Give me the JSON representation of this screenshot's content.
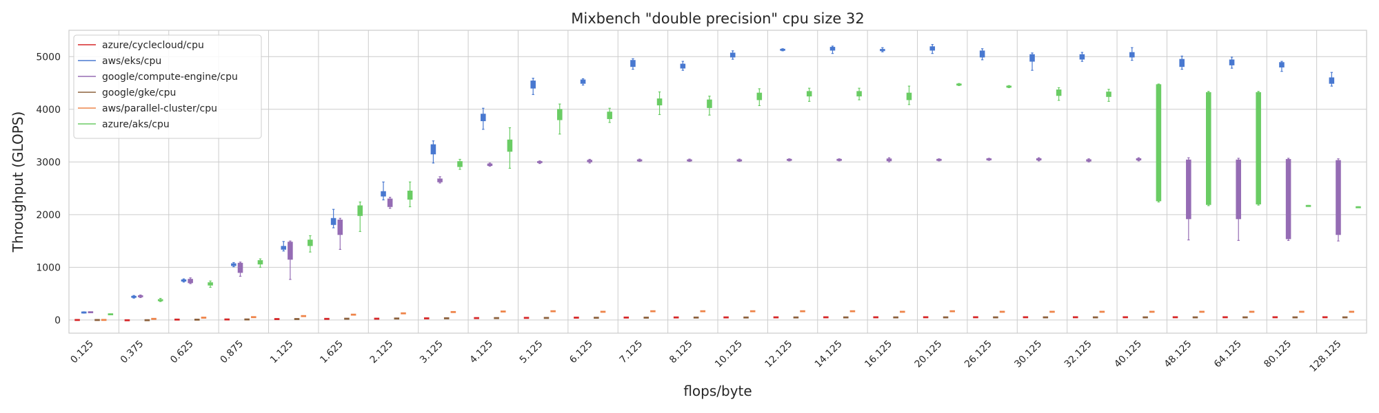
{
  "chart_data": {
    "type": "box",
    "title": "Mixbench \"double precision\" cpu size 32",
    "xlabel": "flops/byte",
    "ylabel": "Throughput (GLOPS)",
    "ylim": [
      -250,
      5500
    ],
    "yticks": [
      0,
      1000,
      2000,
      3000,
      4000,
      5000
    ],
    "grid": true,
    "legend_position": "top-left",
    "categories": [
      "0.125",
      "0.375",
      "0.625",
      "0.875",
      "1.125",
      "1.625",
      "2.125",
      "3.125",
      "4.125",
      "5.125",
      "6.125",
      "7.125",
      "8.125",
      "10.125",
      "12.125",
      "14.125",
      "16.125",
      "20.125",
      "26.125",
      "30.125",
      "32.125",
      "40.125",
      "48.125",
      "64.125",
      "80.125",
      "128.125"
    ],
    "series": [
      {
        "name": "azure/cyclecloud/cpu",
        "color": "#d62728",
        "boxes": [
          [
            -5,
            -2,
            0,
            2,
            5
          ],
          [
            -12,
            -8,
            -5,
            -2,
            0
          ],
          [
            3,
            5,
            8,
            10,
            12
          ],
          [
            5,
            8,
            10,
            12,
            15
          ],
          [
            10,
            15,
            18,
            20,
            24
          ],
          [
            15,
            18,
            21,
            24,
            28
          ],
          [
            20,
            22,
            25,
            27,
            30
          ],
          [
            25,
            28,
            31,
            34,
            37
          ],
          [
            30,
            33,
            36,
            39,
            42
          ],
          [
            34,
            37,
            40,
            43,
            46
          ],
          [
            38,
            41,
            44,
            47,
            50
          ],
          [
            40,
            43,
            46,
            49,
            52
          ],
          [
            42,
            45,
            48,
            51,
            54
          ],
          [
            43,
            46,
            49,
            52,
            55
          ],
          [
            44,
            47,
            50,
            53,
            56
          ],
          [
            45,
            48,
            51,
            54,
            57
          ],
          [
            45,
            48,
            51,
            54,
            57
          ],
          [
            46,
            49,
            52,
            55,
            58
          ],
          [
            46,
            49,
            52,
            55,
            58
          ],
          [
            46,
            49,
            52,
            55,
            58
          ],
          [
            46,
            49,
            52,
            55,
            58
          ],
          [
            46,
            49,
            52,
            55,
            58
          ],
          [
            46,
            49,
            52,
            55,
            58
          ],
          [
            46,
            49,
            52,
            55,
            58
          ],
          [
            46,
            49,
            52,
            55,
            58
          ],
          [
            46,
            49,
            52,
            55,
            58
          ]
        ]
      },
      {
        "name": "aws/eks/cpu",
        "color": "#4878d0",
        "boxes": [
          [
            130,
            136,
            142,
            148,
            155
          ],
          [
            415,
            428,
            440,
            452,
            465
          ],
          [
            720,
            735,
            750,
            765,
            780
          ],
          [
            1010,
            1030,
            1050,
            1070,
            1090
          ],
          [
            1310,
            1340,
            1370,
            1400,
            1490
          ],
          [
            1750,
            1810,
            1870,
            1930,
            2100
          ],
          [
            2280,
            2350,
            2400,
            2440,
            2620
          ],
          [
            2980,
            3150,
            3250,
            3330,
            3400
          ],
          [
            3620,
            3780,
            3850,
            3910,
            4020
          ],
          [
            4280,
            4400,
            4470,
            4540,
            4590
          ],
          [
            4460,
            4490,
            4520,
            4560,
            4580
          ],
          [
            4760,
            4810,
            4870,
            4930,
            4960
          ],
          [
            4740,
            4780,
            4820,
            4860,
            4910
          ],
          [
            4950,
            4990,
            5030,
            5070,
            5110
          ],
          [
            5110,
            5120,
            5130,
            5140,
            5150
          ],
          [
            5060,
            5120,
            5150,
            5180,
            5200
          ],
          [
            5090,
            5110,
            5120,
            5140,
            5170
          ],
          [
            5060,
            5120,
            5150,
            5190,
            5230
          ],
          [
            4940,
            4990,
            5050,
            5110,
            5150
          ],
          [
            4740,
            4910,
            4980,
            5040,
            5070
          ],
          [
            4910,
            4950,
            4990,
            5040,
            5080
          ],
          [
            4930,
            4990,
            5030,
            5080,
            5170
          ],
          [
            4760,
            4810,
            4880,
            4950,
            5010
          ],
          [
            4780,
            4840,
            4890,
            4940,
            4990
          ],
          [
            4720,
            4800,
            4850,
            4890,
            4910
          ],
          [
            4440,
            4490,
            4550,
            4600,
            4700
          ]
        ]
      },
      {
        "name": "google/compute-engine/cpu",
        "color": "#956cb4",
        "boxes": [
          [
            140,
            144,
            147,
            150,
            154
          ],
          [
            425,
            438,
            450,
            462,
            475
          ],
          [
            690,
            705,
            740,
            775,
            800
          ],
          [
            830,
            900,
            1030,
            1080,
            1100
          ],
          [
            770,
            1150,
            1350,
            1480,
            1500
          ],
          [
            1340,
            1620,
            1800,
            1900,
            1930
          ],
          [
            2120,
            2150,
            2200,
            2300,
            2330
          ],
          [
            2600,
            2620,
            2650,
            2680,
            2720
          ],
          [
            2920,
            2930,
            2950,
            2965,
            2980
          ],
          [
            2970,
            2985,
            3000,
            3010,
            3020
          ],
          [
            2980,
            3000,
            3020,
            3035,
            3050
          ],
          [
            3010,
            3020,
            3030,
            3040,
            3055
          ],
          [
            3010,
            3020,
            3030,
            3040,
            3055
          ],
          [
            3010,
            3020,
            3030,
            3040,
            3055
          ],
          [
            3020,
            3030,
            3040,
            3050,
            3060
          ],
          [
            3020,
            3030,
            3040,
            3050,
            3060
          ],
          [
            3000,
            3020,
            3040,
            3060,
            3080
          ],
          [
            3020,
            3030,
            3040,
            3050,
            3060
          ],
          [
            3030,
            3040,
            3050,
            3060,
            3070
          ],
          [
            3020,
            3035,
            3050,
            3065,
            3080
          ],
          [
            3000,
            3015,
            3030,
            3045,
            3060
          ],
          [
            3020,
            3035,
            3050,
            3065,
            3080
          ],
          [
            1520,
            1920,
            2700,
            3040,
            3080
          ],
          [
            1510,
            1920,
            2700,
            3040,
            3070
          ],
          [
            1510,
            1540,
            2500,
            3050,
            3070
          ],
          [
            1500,
            1620,
            2500,
            3030,
            3060
          ]
        ]
      },
      {
        "name": "google/gke/cpu",
        "color": "#8c613c",
        "boxes": [
          [
            -6,
            -3,
            -1,
            2,
            5
          ],
          [
            -10,
            -7,
            -4,
            -1,
            2
          ],
          [
            0,
            3,
            6,
            9,
            12
          ],
          [
            4,
            7,
            10,
            13,
            16
          ],
          [
            12,
            15,
            18,
            21,
            24
          ],
          [
            18,
            21,
            24,
            27,
            30
          ],
          [
            22,
            25,
            28,
            31,
            34
          ],
          [
            26,
            29,
            32,
            35,
            38
          ],
          [
            30,
            33,
            36,
            39,
            42
          ],
          [
            33,
            36,
            39,
            42,
            45
          ],
          [
            36,
            39,
            42,
            45,
            48
          ],
          [
            38,
            41,
            44,
            47,
            50
          ],
          [
            40,
            43,
            46,
            49,
            52
          ],
          [
            41,
            44,
            47,
            50,
            53
          ],
          [
            42,
            45,
            48,
            51,
            54
          ],
          [
            43,
            46,
            49,
            52,
            55
          ],
          [
            43,
            46,
            49,
            52,
            55
          ],
          [
            44,
            47,
            50,
            53,
            56
          ],
          [
            44,
            47,
            50,
            53,
            56
          ],
          [
            44,
            47,
            50,
            53,
            56
          ],
          [
            44,
            47,
            50,
            53,
            56
          ],
          [
            44,
            47,
            50,
            53,
            56
          ],
          [
            44,
            47,
            50,
            53,
            56
          ],
          [
            44,
            47,
            50,
            53,
            56
          ],
          [
            44,
            47,
            50,
            53,
            56
          ],
          [
            44,
            47,
            50,
            53,
            56
          ]
        ]
      },
      {
        "name": "aws/parallel-cluster/cpu",
        "color": "#ee854a",
        "boxes": [
          [
            -5,
            -2,
            1,
            4,
            7
          ],
          [
            15,
            18,
            21,
            24,
            27
          ],
          [
            38,
            41,
            44,
            47,
            50
          ],
          [
            48,
            51,
            54,
            57,
            60
          ],
          [
            68,
            71,
            74,
            77,
            80
          ],
          [
            95,
            98,
            101,
            104,
            107
          ],
          [
            120,
            123,
            126,
            129,
            132
          ],
          [
            145,
            148,
            151,
            154,
            157
          ],
          [
            155,
            158,
            161,
            164,
            167
          ],
          [
            160,
            163,
            166,
            169,
            172
          ],
          [
            150,
            153,
            156,
            159,
            162
          ],
          [
            160,
            163,
            166,
            169,
            172
          ],
          [
            160,
            163,
            166,
            169,
            172
          ],
          [
            160,
            163,
            166,
            169,
            172
          ],
          [
            160,
            163,
            166,
            169,
            172
          ],
          [
            160,
            163,
            166,
            169,
            172
          ],
          [
            150,
            153,
            156,
            159,
            162
          ],
          [
            160,
            163,
            166,
            169,
            172
          ],
          [
            150,
            153,
            156,
            159,
            162
          ],
          [
            150,
            153,
            156,
            159,
            162
          ],
          [
            150,
            153,
            156,
            159,
            162
          ],
          [
            150,
            153,
            156,
            159,
            162
          ],
          [
            150,
            153,
            156,
            159,
            162
          ],
          [
            150,
            153,
            156,
            159,
            162
          ],
          [
            150,
            153,
            156,
            159,
            162
          ],
          [
            150,
            153,
            156,
            159,
            162
          ]
        ]
      },
      {
        "name": "azure/aks/cpu",
        "color": "#6acc64",
        "boxes": [
          [
            104,
            106,
            108,
            110,
            112
          ],
          [
            350,
            362,
            375,
            390,
            410
          ],
          [
            620,
            660,
            690,
            710,
            740
          ],
          [
            1000,
            1060,
            1090,
            1130,
            1160
          ],
          [
            1290,
            1410,
            1460,
            1520,
            1600
          ],
          [
            1680,
            1980,
            2080,
            2170,
            2240
          ],
          [
            2150,
            2290,
            2380,
            2450,
            2620
          ],
          [
            2860,
            2910,
            2960,
            3010,
            3050
          ],
          [
            2880,
            3200,
            3330,
            3420,
            3650
          ],
          [
            3530,
            3800,
            3950,
            4000,
            4100
          ],
          [
            3750,
            3820,
            3880,
            3950,
            4020
          ],
          [
            3900,
            4080,
            4150,
            4200,
            4330
          ],
          [
            3890,
            4030,
            4110,
            4180,
            4250
          ],
          [
            4070,
            4180,
            4250,
            4310,
            4390
          ],
          [
            4150,
            4250,
            4300,
            4340,
            4400
          ],
          [
            4180,
            4250,
            4300,
            4340,
            4400
          ],
          [
            4090,
            4180,
            4250,
            4310,
            4440
          ],
          [
            4450,
            4460,
            4470,
            4480,
            4490
          ],
          [
            4410,
            4420,
            4430,
            4440,
            4450
          ],
          [
            4170,
            4260,
            4310,
            4370,
            4410
          ],
          [
            4150,
            4240,
            4280,
            4330,
            4380
          ],
          [
            2240,
            2260,
            4450,
            4470,
            4480
          ],
          [
            2170,
            2190,
            4290,
            4320,
            4340
          ],
          [
            2180,
            2200,
            4290,
            4320,
            4340
          ],
          [
            2155,
            2160,
            2165,
            2170,
            2175
          ],
          [
            2130,
            2135,
            2140,
            2145,
            2150
          ]
        ]
      }
    ]
  }
}
